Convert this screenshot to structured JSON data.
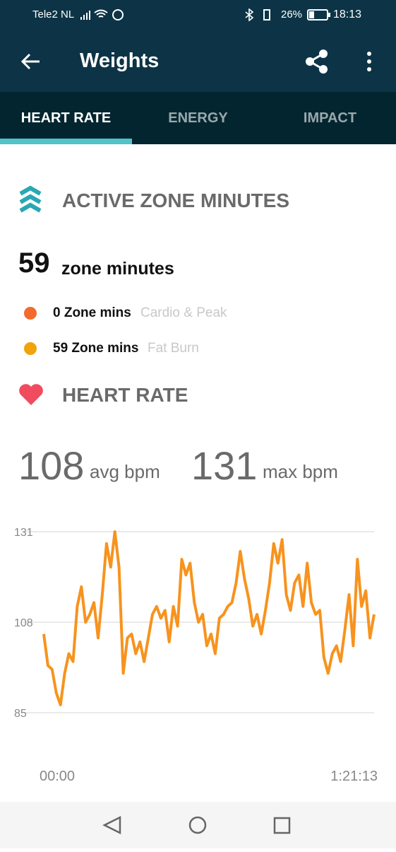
{
  "status_bar": {
    "carrier": "Tele2 NL",
    "battery": "26%",
    "time": "18:13"
  },
  "app_bar": {
    "title": "Weights"
  },
  "tabs": [
    "HEART RATE",
    "ENERGY",
    "IMPACT"
  ],
  "zone_section": {
    "title": "ACTIVE ZONE MINUTES",
    "total": "59",
    "total_unit": "zone minutes",
    "rows": [
      {
        "value": "0 Zone mins",
        "label": "Cardio & Peak",
        "color": "#f26b2d"
      },
      {
        "value": "59 Zone mins",
        "label": "Fat Burn",
        "color": "#f0a30a"
      }
    ]
  },
  "heart_section": {
    "title": "HEART RATE",
    "avg": "108",
    "avg_unit": "avg bpm",
    "max": "131",
    "max_unit": "max bpm"
  },
  "chart_data": {
    "type": "line",
    "color": "#f7931e",
    "values": [
      105,
      97,
      96,
      90,
      87,
      95,
      100,
      98,
      112,
      117,
      108,
      110,
      113,
      104,
      115,
      128,
      122,
      131,
      122,
      95,
      104,
      105,
      100,
      103,
      98,
      104,
      110,
      112,
      109,
      111,
      103,
      112,
      107,
      124,
      120,
      123,
      113,
      108,
      110,
      102,
      105,
      100,
      109,
      110,
      112,
      113,
      118,
      126,
      119,
      114,
      107,
      110,
      105,
      111,
      118,
      128,
      123,
      129,
      115,
      111,
      118,
      120,
      112,
      123,
      113,
      110,
      111,
      99,
      95,
      100,
      102,
      98,
      106,
      115,
      102,
      124,
      112,
      116,
      104,
      110
    ],
    "ylim": [
      85,
      131
    ],
    "yticks": [
      85,
      108,
      131
    ],
    "grid": true,
    "x_labels": [
      "00:00",
      "1:21:13"
    ]
  }
}
